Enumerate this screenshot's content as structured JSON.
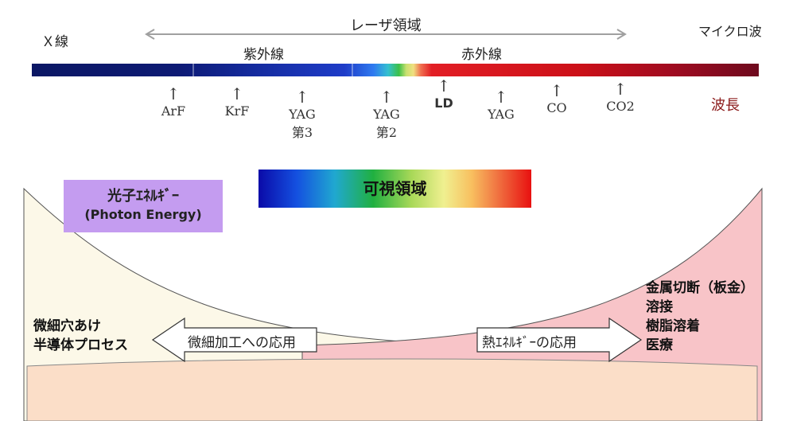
{
  "header": {
    "xray": "Ｘ線",
    "laser_region": "レーザ領域",
    "microwave": "マイクロ波",
    "ultraviolet": "紫外線",
    "infrared": "赤外線",
    "wavelength": "波長"
  },
  "lasers": [
    {
      "name": "ArF",
      "sub": ""
    },
    {
      "name": "KrF",
      "sub": ""
    },
    {
      "name": "YAG",
      "sub": "第3"
    },
    {
      "name": "YAG",
      "sub": "第2"
    },
    {
      "name": "LD",
      "sub": ""
    },
    {
      "name": "YAG",
      "sub": ""
    },
    {
      "name": "CO",
      "sub": ""
    },
    {
      "name": "CO2",
      "sub": ""
    }
  ],
  "arrow_glyph": "↑",
  "visible_region": "可視領域",
  "photon_energy": {
    "line1": "光子ｴﾈﾙｷﾞｰ",
    "line2": "(Photon Energy)"
  },
  "left_applications": {
    "line1": "微細穴あけ",
    "line2": "半導体プロセス"
  },
  "right_applications": [
    "金属切断（板金）",
    "溶接",
    "樹脂溶着",
    "医療"
  ],
  "arrows": {
    "micro": "微細加工への応用",
    "thermal": "熱ｴﾈﾙｷﾞｰの応用"
  },
  "colors": {
    "left_curve_fill": "#fcf8e8",
    "right_curve_fill": "#f8c4c8",
    "base_fill": "#fbdec8",
    "photon_box": "#c49cf0",
    "wavelength_label": "#8b1a1a",
    "laser_range_arrow": "#a0a0a0"
  }
}
